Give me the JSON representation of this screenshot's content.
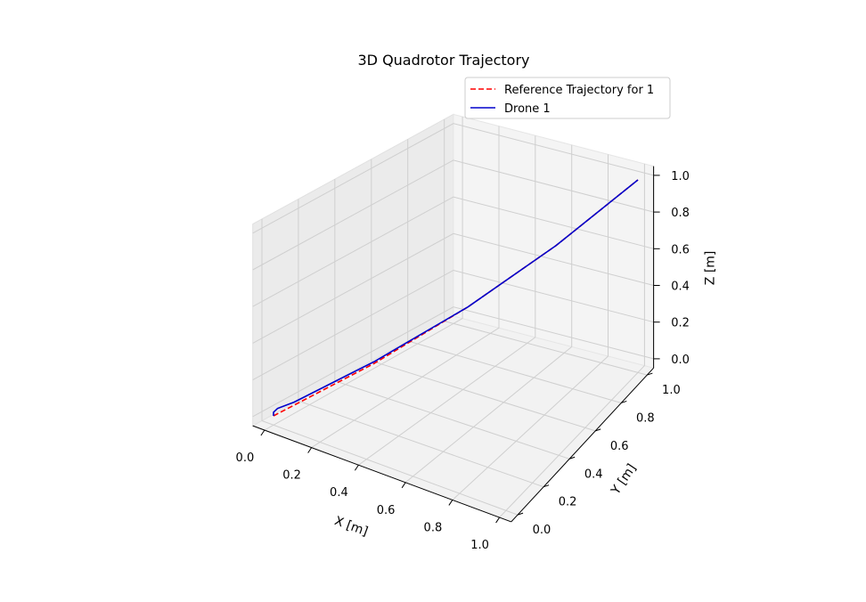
{
  "chart_data": {
    "type": "line",
    "projection": "3d",
    "title": "3D Quadrotor Trajectory",
    "xlabel": "X [m]",
    "ylabel": "Y [m]",
    "zlabel": "Z [m]",
    "xlim": [
      0,
      1
    ],
    "ylim": [
      0,
      1
    ],
    "zlim": [
      0,
      1
    ],
    "xticks": [
      "0.0",
      "0.2",
      "0.4",
      "0.6",
      "0.8",
      "1.0"
    ],
    "yticks": [
      "0.0",
      "0.2",
      "0.4",
      "0.6",
      "0.8",
      "1.0"
    ],
    "zticks": [
      "0.0",
      "0.2",
      "0.4",
      "0.6",
      "0.8",
      "1.0"
    ],
    "grid": true,
    "legend_position": "top-right",
    "series": [
      {
        "name": "Reference Trajectory for 1",
        "color": "#ff0000",
        "style": "dashed",
        "x": [
          0.0,
          0.25,
          0.5,
          0.75,
          1.0
        ],
        "y": [
          0.0,
          0.25,
          0.5,
          0.75,
          1.0
        ],
        "z": [
          0.0,
          0.25,
          0.5,
          0.75,
          1.0
        ]
      },
      {
        "name": "Drone 1",
        "color": "#0000cc",
        "style": "solid",
        "x": [
          0.0,
          0.0,
          0.01,
          0.05,
          0.25,
          0.5,
          0.75,
          1.0
        ],
        "y": [
          0.0,
          0.0,
          0.01,
          0.05,
          0.25,
          0.5,
          0.75,
          1.0
        ],
        "z": [
          0.0,
          0.02,
          0.04,
          0.07,
          0.26,
          0.5,
          0.75,
          1.0
        ]
      }
    ]
  }
}
